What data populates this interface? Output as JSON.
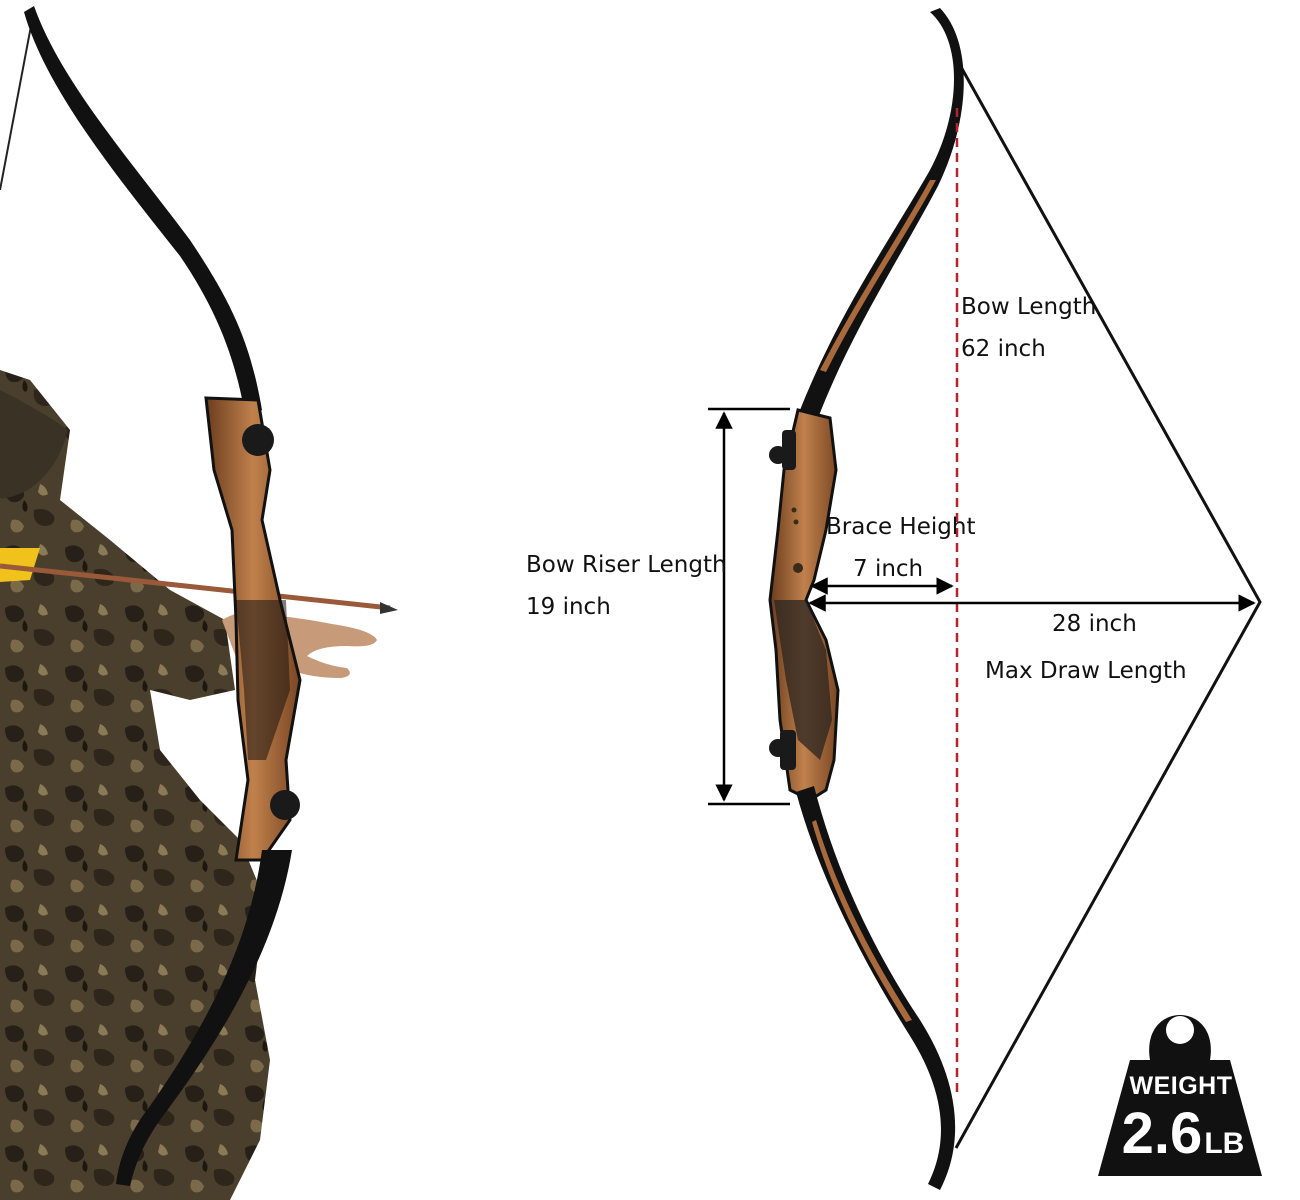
{
  "specs": {
    "bow_length": {
      "label": "Bow Length",
      "value": "62 inch"
    },
    "riser_length": {
      "label": "Bow Riser Length",
      "value": "19 inch"
    },
    "brace_height": {
      "label": "Brace Height",
      "value": "7 inch"
    },
    "draw_length": {
      "value": "28 inch",
      "label": "Max Draw Length"
    },
    "weight": {
      "label": "WEIGHT",
      "value": "2.6",
      "unit": "LB"
    }
  },
  "colors": {
    "limb": "#111111",
    "wood": "#a86a3c",
    "wood_dark": "#6b3d1e",
    "camo_base": "#4a3f2c",
    "camo_dark": "#262018",
    "dash_line": "#b3242c",
    "badge": "#111111"
  }
}
